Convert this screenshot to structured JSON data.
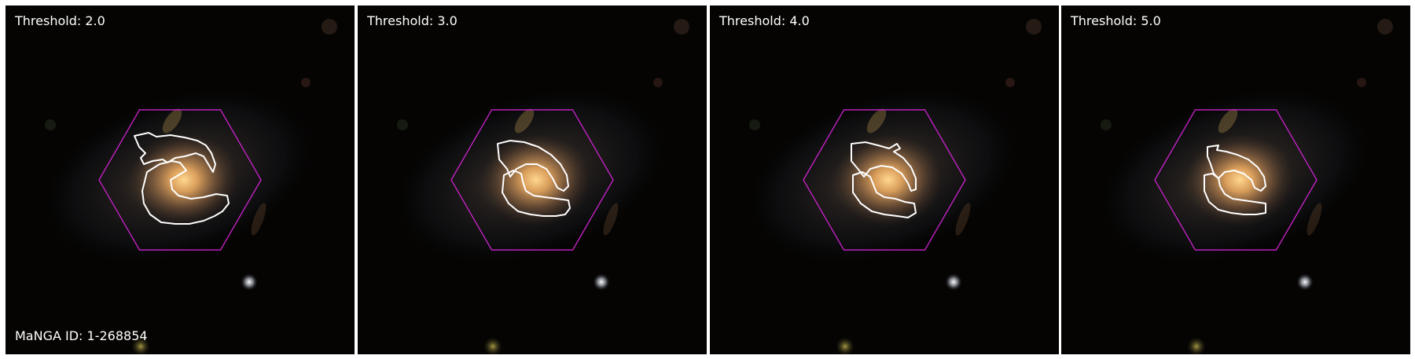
{
  "figure": {
    "galaxy_id_label": "MaNGA ID: 1-268854",
    "colors": {
      "background": "#050403",
      "hexagon": "#cc22cc",
      "contour": "#ffffff",
      "label": "#ffffff"
    },
    "panels": [
      {
        "threshold_label": "Threshold: 2.0",
        "threshold": 2.0
      },
      {
        "threshold_label": "Threshold: 3.0",
        "threshold": 3.0
      },
      {
        "threshold_label": "Threshold: 4.0",
        "threshold": 4.0
      },
      {
        "threshold_label": "Threshold: 5.0",
        "threshold": 5.0
      }
    ]
  }
}
